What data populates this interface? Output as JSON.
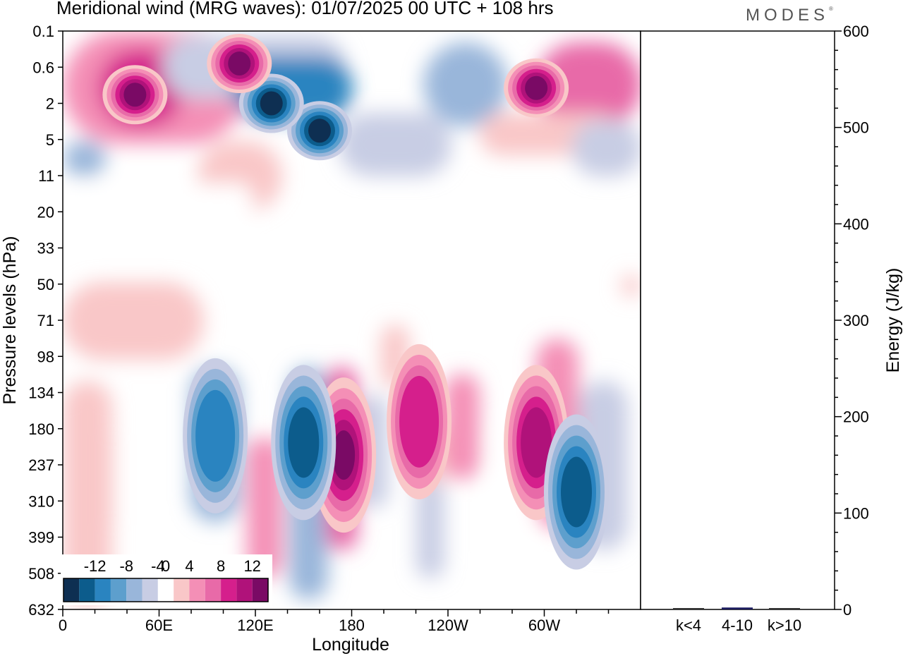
{
  "header": {
    "title": "Meridional wind (MRG waves):  01/07/2025  00 UTC  + 108 hrs",
    "logo": "MODES"
  },
  "chart_data": [
    {
      "type": "heatmap",
      "title": "Meridional wind (MRG waves):  01/07/2025  00 UTC  + 108 hrs",
      "xlabel": "Longitude",
      "ylabel": "Pressure levels (hPa)",
      "x_tick_labels": [
        "0",
        "60E",
        "120E",
        "180",
        "120W",
        "60W"
      ],
      "y_tick_labels": [
        "0.1",
        "0.6",
        "2",
        "5",
        "11",
        "20",
        "33",
        "50",
        "71",
        "98",
        "134",
        "180",
        "237",
        "310",
        "399",
        "508",
        "632"
      ],
      "y_scale": "log-pressure",
      "colorbar": {
        "tick_labels": [
          "-12",
          "-8",
          "-4",
          "0",
          "4",
          "8",
          "12"
        ],
        "levels": [
          -14,
          -12,
          -10,
          -8,
          -6,
          -4,
          -2,
          2,
          4,
          6,
          8,
          10,
          12,
          14
        ],
        "colors": [
          "#0e2f52",
          "#0c5c8c",
          "#2a84c0",
          "#5d9fcd",
          "#99b6da",
          "#c8cde4",
          "#ffffff",
          "#f9c7c8",
          "#f48fb6",
          "#e86aa8",
          "#d51f8c",
          "#b0127a",
          "#7a0a65"
        ],
        "placement": "bottom-left"
      },
      "features": [
        {
          "lon": 160,
          "lev": 4,
          "value": -14
        },
        {
          "lon": 130,
          "lev": 2,
          "value": -13
        },
        {
          "lon": 110,
          "lev": 0.5,
          "value": 12
        },
        {
          "lon": 45,
          "lev": 1.5,
          "value": 13
        },
        {
          "lon": 295,
          "lev": 1.2,
          "value": 13
        },
        {
          "lon": 175,
          "lev": 220,
          "value": 13
        },
        {
          "lon": 150,
          "lev": 200,
          "value": -10
        },
        {
          "lon": 295,
          "lev": 200,
          "value": 10
        },
        {
          "lon": 320,
          "lev": 290,
          "value": -10
        },
        {
          "lon": 95,
          "lev": 190,
          "value": -8
        },
        {
          "lon": 222,
          "lev": 170,
          "value": 8
        }
      ]
    },
    {
      "type": "bar",
      "categories": [
        "k<4",
        "4-10",
        "k>10"
      ],
      "values": [
        0,
        2,
        0
      ],
      "ylabel": "Energy (J/kg)",
      "ylim": [
        0,
        600
      ],
      "y_tick_labels": [
        "0",
        "100",
        "200",
        "300",
        "400",
        "500",
        "600"
      ],
      "bar_color": "#1a1a5e"
    }
  ]
}
